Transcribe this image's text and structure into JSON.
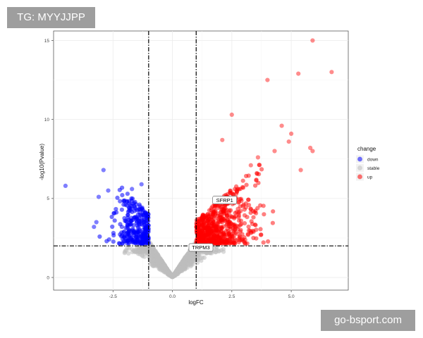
{
  "watermarks": {
    "top_left": "TG: MYYJJPP",
    "bottom_right": "go-bsport.com"
  },
  "chart_data": {
    "type": "scatter",
    "title": "",
    "xlabel": "logFC",
    "ylabel": "-log10(Pvalue)",
    "xlim": [
      -5,
      7.4
    ],
    "ylim": [
      -0.8,
      15.6
    ],
    "x_ticks": [
      -2.5,
      0.0,
      2.5,
      5.0
    ],
    "x_tick_labels": [
      "-2.5",
      "0.0",
      "2.5",
      "5.0"
    ],
    "y_ticks": [
      0,
      5,
      10,
      15
    ],
    "y_tick_labels": [
      "0",
      "5",
      "10",
      "15"
    ],
    "grid": true,
    "thresholds": {
      "vertical_lines": [
        -1,
        1
      ],
      "horizontal_line": 2
    },
    "legend": {
      "title": "change",
      "placement": "right",
      "entries": [
        {
          "label": "down",
          "color": "#0000ff"
        },
        {
          "label": "stable",
          "color": "#bdbdbd"
        },
        {
          "label": "up",
          "color": "#ff0000"
        }
      ]
    },
    "annotations": [
      {
        "label": "SFRP1",
        "x": 2.2,
        "y": 4.9
      },
      {
        "label": "TRPM3",
        "x": 1.2,
        "y": 1.9
      }
    ],
    "series": [
      {
        "name": "up",
        "color": "#ff0000",
        "highlighted_points": [
          [
            5.9,
            15.0
          ],
          [
            6.7,
            13.0
          ],
          [
            5.3,
            12.9
          ],
          [
            4.0,
            12.5
          ],
          [
            2.5,
            10.3
          ],
          [
            4.6,
            9.6
          ],
          [
            5.0,
            9.1
          ],
          [
            4.9,
            8.6
          ],
          [
            2.1,
            8.7
          ],
          [
            5.8,
            8.2
          ],
          [
            5.9,
            8.0
          ],
          [
            4.3,
            8.0
          ],
          [
            5.4,
            6.8
          ],
          [
            3.6,
            7.6
          ],
          [
            3.3,
            7.1
          ]
        ],
        "cluster": {
          "x_range": [
            1.0,
            4.3
          ],
          "y_range": [
            2.2,
            7.2
          ],
          "peak_x": 1.9,
          "count": 700
        }
      },
      {
        "name": "down",
        "color": "#0000ff",
        "highlighted_points": [
          [
            -4.5,
            5.8
          ],
          [
            -2.9,
            6.8
          ],
          [
            -3.1,
            5.1
          ],
          [
            -3.2,
            3.5
          ],
          [
            -2.7,
            5.5
          ],
          [
            -1.3,
            5.9
          ],
          [
            -1.7,
            5.6
          ],
          [
            -3.3,
            3.2
          ]
        ],
        "cluster": {
          "x_range": [
            -3.2,
            -1.0
          ],
          "y_range": [
            2.2,
            5.5
          ],
          "peak_x": -1.3,
          "count": 300
        }
      },
      {
        "name": "stable",
        "color": "#bdbdbd",
        "cluster": {
          "x_range": [
            -2.3,
            2.3
          ],
          "y_range": [
            0.0,
            5.0
          ],
          "count": 1200
        }
      }
    ]
  }
}
